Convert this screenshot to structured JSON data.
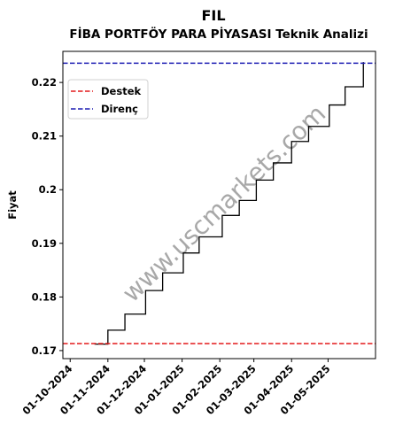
{
  "chart_data": {
    "type": "line",
    "title": "FIL",
    "subtitle": "FİBA PORTFÖY PARA PİYASASI Teknik Analizi",
    "xlabel": "",
    "ylabel": "Fiyat",
    "xlim": [
      "2024-09-25",
      "2025-06-09"
    ],
    "ylim": [
      0.1685,
      0.2258
    ],
    "x_ticks": [
      "01-10-2024",
      "01-11-2024",
      "01-12-2024",
      "01-01-2025",
      "01-02-2025",
      "01-03-2025",
      "01-04-2025",
      "01-05-2025"
    ],
    "x_tick_dates": [
      "2024-10-01",
      "2024-11-01",
      "2024-12-01",
      "2025-01-01",
      "2025-02-01",
      "2025-03-01",
      "2025-04-01",
      "2025-05-01"
    ],
    "y_ticks": [
      0.17,
      0.18,
      0.19,
      0.2,
      0.21,
      0.22
    ],
    "y_tick_labels": [
      "0.17",
      "0.18",
      "0.19",
      "0.2",
      "0.21",
      "0.22"
    ],
    "grid": false,
    "legend_position": "upper-left",
    "watermark": "www.uscmarkets.com",
    "series": [
      {
        "color": "#000000",
        "x": [
          "2024-10-21",
          "2024-11-01",
          "2024-11-15",
          "2024-12-02",
          "2024-12-16",
          "2025-01-02",
          "2025-01-15",
          "2025-02-03",
          "2025-02-17",
          "2025-03-03",
          "2025-03-17",
          "2025-04-01",
          "2025-04-15",
          "2025-05-02",
          "2025-05-15",
          "2025-05-30"
        ],
        "y": [
          0.1712,
          0.1738,
          0.1768,
          0.1812,
          0.1845,
          0.1882,
          0.1912,
          0.1952,
          0.198,
          0.2018,
          0.205,
          0.209,
          0.2118,
          0.2158,
          0.2192,
          0.2238
        ]
      }
    ],
    "hlines": [
      {
        "name": "Destek",
        "y": 0.1713,
        "color": "#e41a1c",
        "style": "dashed"
      },
      {
        "name": "Direnç",
        "y": 0.2236,
        "color": "#1f1fb4",
        "style": "dashed"
      }
    ]
  }
}
